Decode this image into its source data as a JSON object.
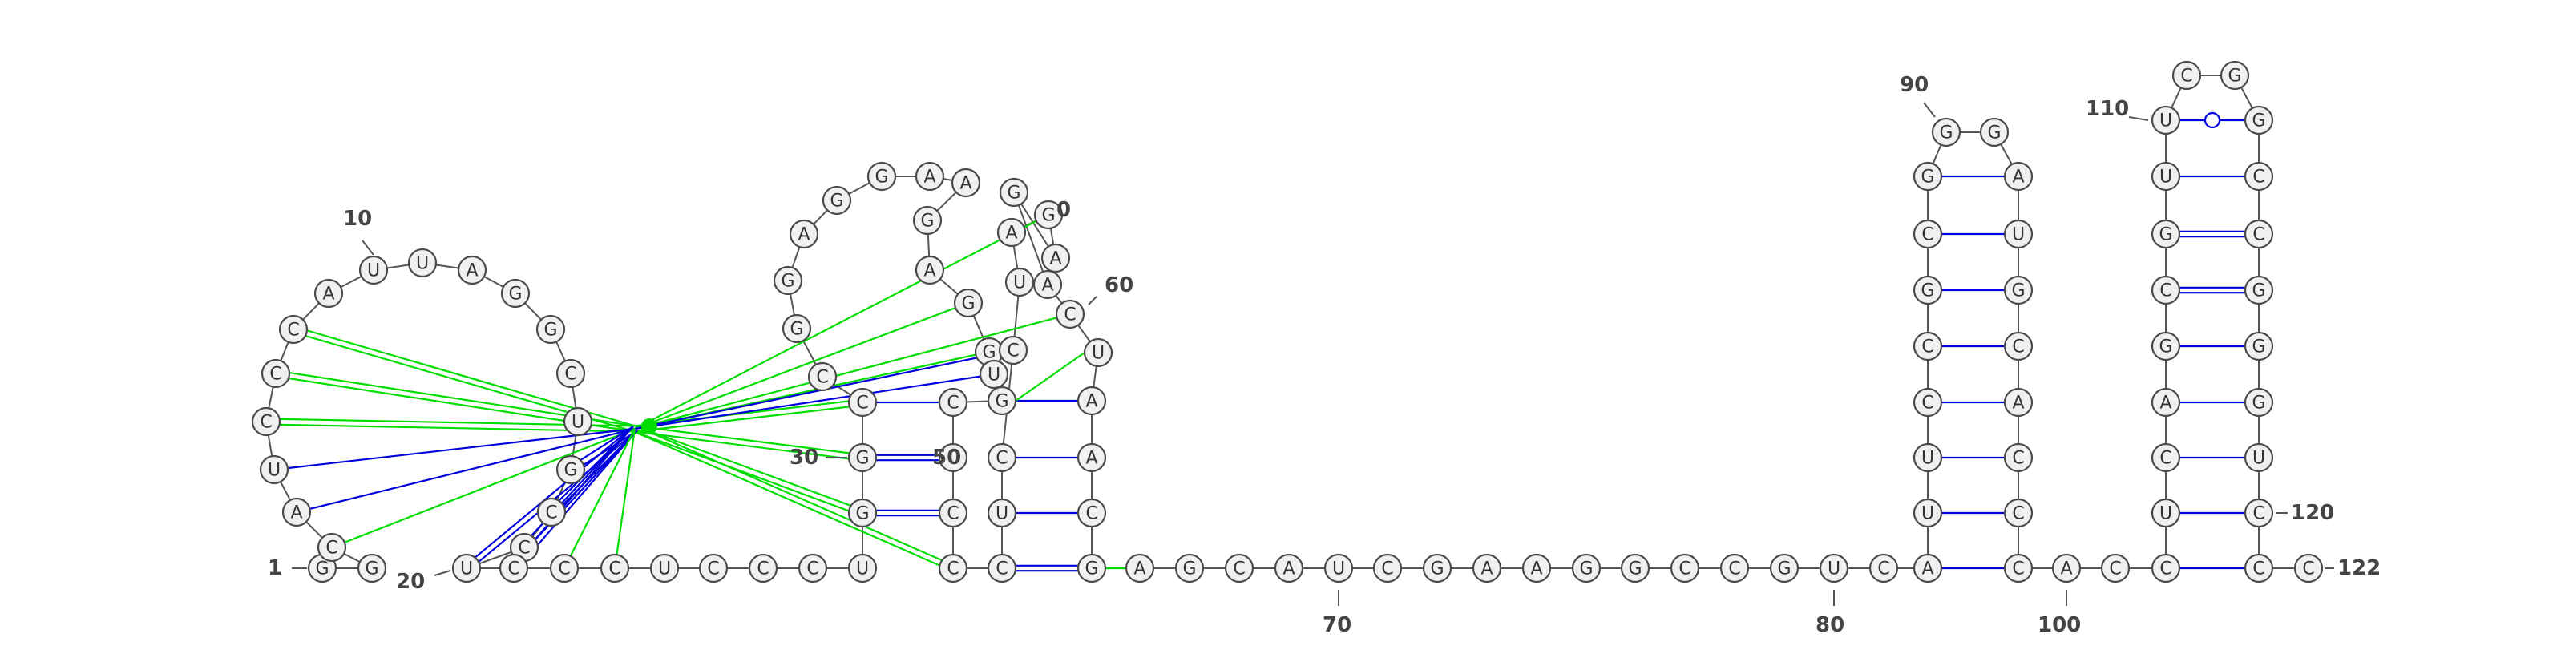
{
  "sequence": "GGCAUCCCAUUAGGCUGCCUCCCUCCCUGGCCGGAGGAAGAGGUGCCCCCUCCUAGAGACUAACGAGCAUCGAAGGCCGUCAUUCCGCGGGAUGCACCCACCUCAGCGUUCGGCCGGGUCCCC",
  "labels": [
    "1",
    "10",
    "20",
    "30",
    "50",
    "0",
    "60",
    "70",
    "80",
    "90",
    "100",
    "110",
    "120",
    "122"
  ],
  "colors": {
    "pair": "#0000dd",
    "noncanonical": "#0000dd",
    "pseudoknot": "#00dd00",
    "node_fill": "#f0f0f0",
    "node_stroke": "#4a4a4a"
  }
}
